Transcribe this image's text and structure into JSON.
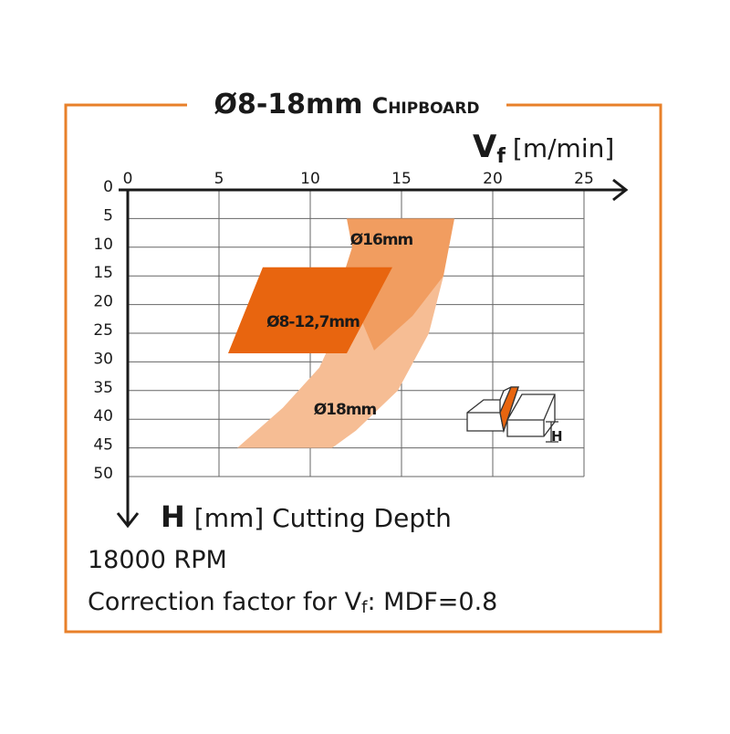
{
  "chart_data": {
    "type": "region",
    "title": "Ø8-18mm",
    "subtitle": "Chipboard",
    "x_label": {
      "symbol": "V",
      "subscript": "f",
      "unit": "[m/min]"
    },
    "y_label": {
      "symbol": "H",
      "text": "[mm] Cutting Depth"
    },
    "xlim": [
      0,
      25
    ],
    "xticks": [
      0,
      5,
      10,
      15,
      20,
      25
    ],
    "ylim": [
      0,
      50
    ],
    "yticks": [
      0,
      5,
      10,
      15,
      20,
      25,
      30,
      35,
      40,
      45,
      50
    ],
    "grid": true,
    "series": [
      {
        "name": "Ø18mm",
        "color": "#f6bd94",
        "x": [
          17.3,
          16.5,
          14.8,
          12.5,
          11.2,
          6,
          8.5,
          10.5,
          11.8,
          12.3
        ],
        "values": [
          15,
          25,
          35,
          42,
          45,
          45,
          38,
          31,
          22,
          10
        ]
      },
      {
        "name": "Ø16mm",
        "color": "#f19d60",
        "x": [
          12,
          17.9,
          17.3,
          15.6,
          13.5,
          11.8,
          12.3
        ],
        "values": [
          5,
          5,
          15,
          22,
          28,
          15,
          10
        ]
      },
      {
        "name": "Ø8-12,7mm",
        "color": "#e8650f",
        "x": [
          7.4,
          14.5,
          12,
          5.5
        ],
        "values": [
          13.5,
          13.5,
          28.5,
          28.5
        ]
      }
    ],
    "icon_label": "H",
    "notes": [
      {
        "text": "18000 RPM"
      },
      {
        "text": "Correction factor for V",
        "subscript": "f",
        "suffix": ": MDF=0.8"
      }
    ]
  }
}
